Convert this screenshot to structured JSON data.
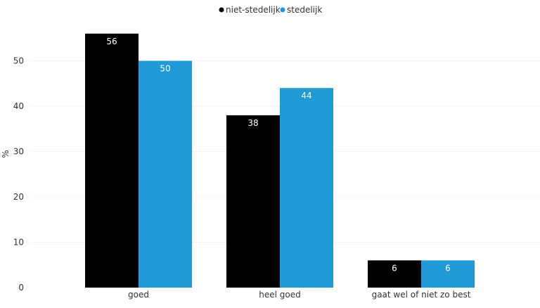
{
  "chart_data": {
    "type": "bar",
    "categories": [
      "goed",
      "heel goed",
      "gaat wel of niet zo best"
    ],
    "series": [
      {
        "name": "niet-stedelijk",
        "color": "#000000",
        "values": [
          56,
          38,
          6
        ]
      },
      {
        "name": "stedelijk",
        "color": "#1f9ad6",
        "values": [
          50,
          44,
          6
        ]
      }
    ],
    "ylabel": "%",
    "ylim": [
      0,
      60
    ],
    "yticks": [
      0,
      10,
      20,
      30,
      40,
      50
    ],
    "grid": true,
    "legend_position": "top-center",
    "data_labels": true
  }
}
